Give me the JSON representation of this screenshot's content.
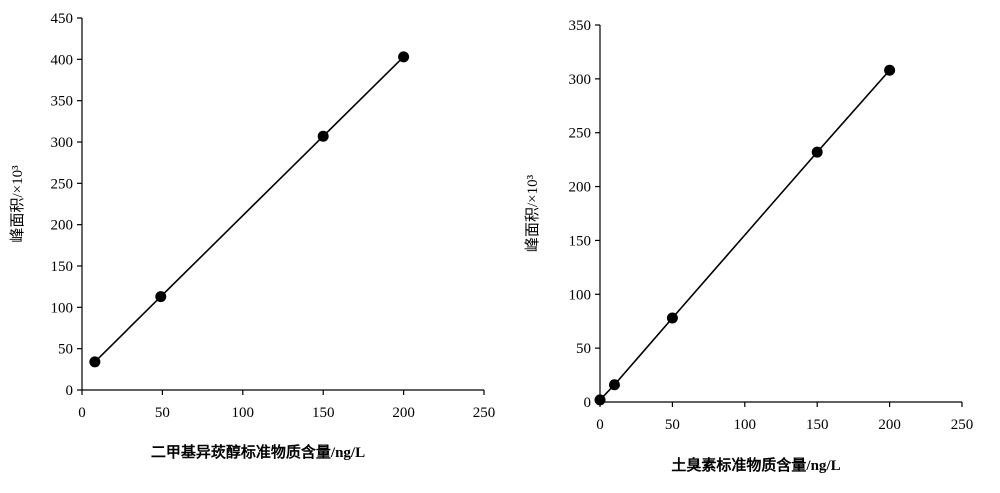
{
  "chart_data": [
    {
      "type": "scatter",
      "xlabel": "二甲基异莰醇标准物质含量/ng/L",
      "ylabel": "峰面积/×10³",
      "xlim": [
        0,
        250
      ],
      "ylim": [
        0,
        450
      ],
      "xticks": [
        0,
        50,
        100,
        150,
        200,
        250
      ],
      "yticks": [
        0,
        50,
        100,
        150,
        200,
        250,
        300,
        350,
        400,
        450
      ],
      "grid": false,
      "trendline": "linear",
      "series": [
        {
          "x": [
            8,
            49,
            150,
            200
          ],
          "y": [
            34,
            113,
            307,
            403
          ]
        }
      ]
    },
    {
      "type": "scatter",
      "xlabel": "土臭素标准物质含量/ng/L",
      "ylabel": "峰面积/×10³",
      "xlim": [
        0,
        250
      ],
      "ylim": [
        0,
        350
      ],
      "xticks": [
        0,
        50,
        100,
        150,
        200,
        250
      ],
      "yticks": [
        0,
        50,
        100,
        150,
        200,
        250,
        300,
        350
      ],
      "grid": false,
      "trendline": "linear",
      "series": [
        {
          "x": [
            0,
            10,
            50,
            150,
            200
          ],
          "y": [
            2,
            16,
            78,
            232,
            308
          ]
        }
      ]
    }
  ],
  "colors": {
    "axis": "#000000",
    "marker": "#000000",
    "line": "#000000"
  }
}
